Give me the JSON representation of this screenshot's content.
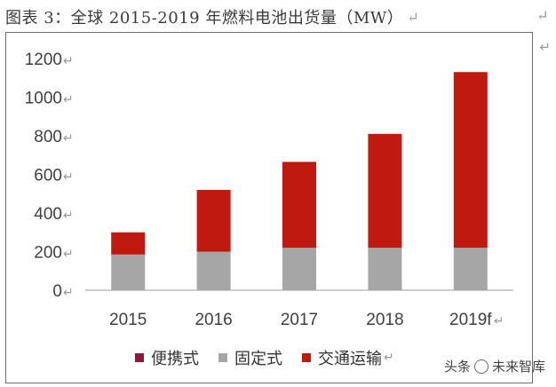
{
  "page": {
    "title": "图表 3：全球 2015-2019 年燃料电池出货量（MW）",
    "return_mark": "↵",
    "watermark_prefix": "头条",
    "watermark_name": "未来智库"
  },
  "chart_data": {
    "type": "bar",
    "stacked": true,
    "title": "",
    "xlabel": "",
    "ylabel": "",
    "ylim": [
      0,
      1200
    ],
    "yticks": [
      0,
      200,
      400,
      600,
      800,
      1000,
      1200
    ],
    "categories": [
      "2015",
      "2016",
      "2017",
      "2018",
      "2019f"
    ],
    "series": [
      {
        "name": "便携式",
        "color": "#8b1a3a",
        "values": [
          0,
          0,
          0,
          0,
          0
        ]
      },
      {
        "name": "固定式",
        "color": "#a6a6a6",
        "values": [
          185,
          200,
          220,
          220,
          220
        ]
      },
      {
        "name": "交通运输",
        "color": "#c0190f",
        "values": [
          115,
          320,
          445,
          590,
          910
        ]
      }
    ],
    "legend_position": "bottom",
    "grid": false
  },
  "colors": {
    "axis": "#bfbfbf",
    "text": "#404040",
    "frame": "#6e6e6e"
  }
}
